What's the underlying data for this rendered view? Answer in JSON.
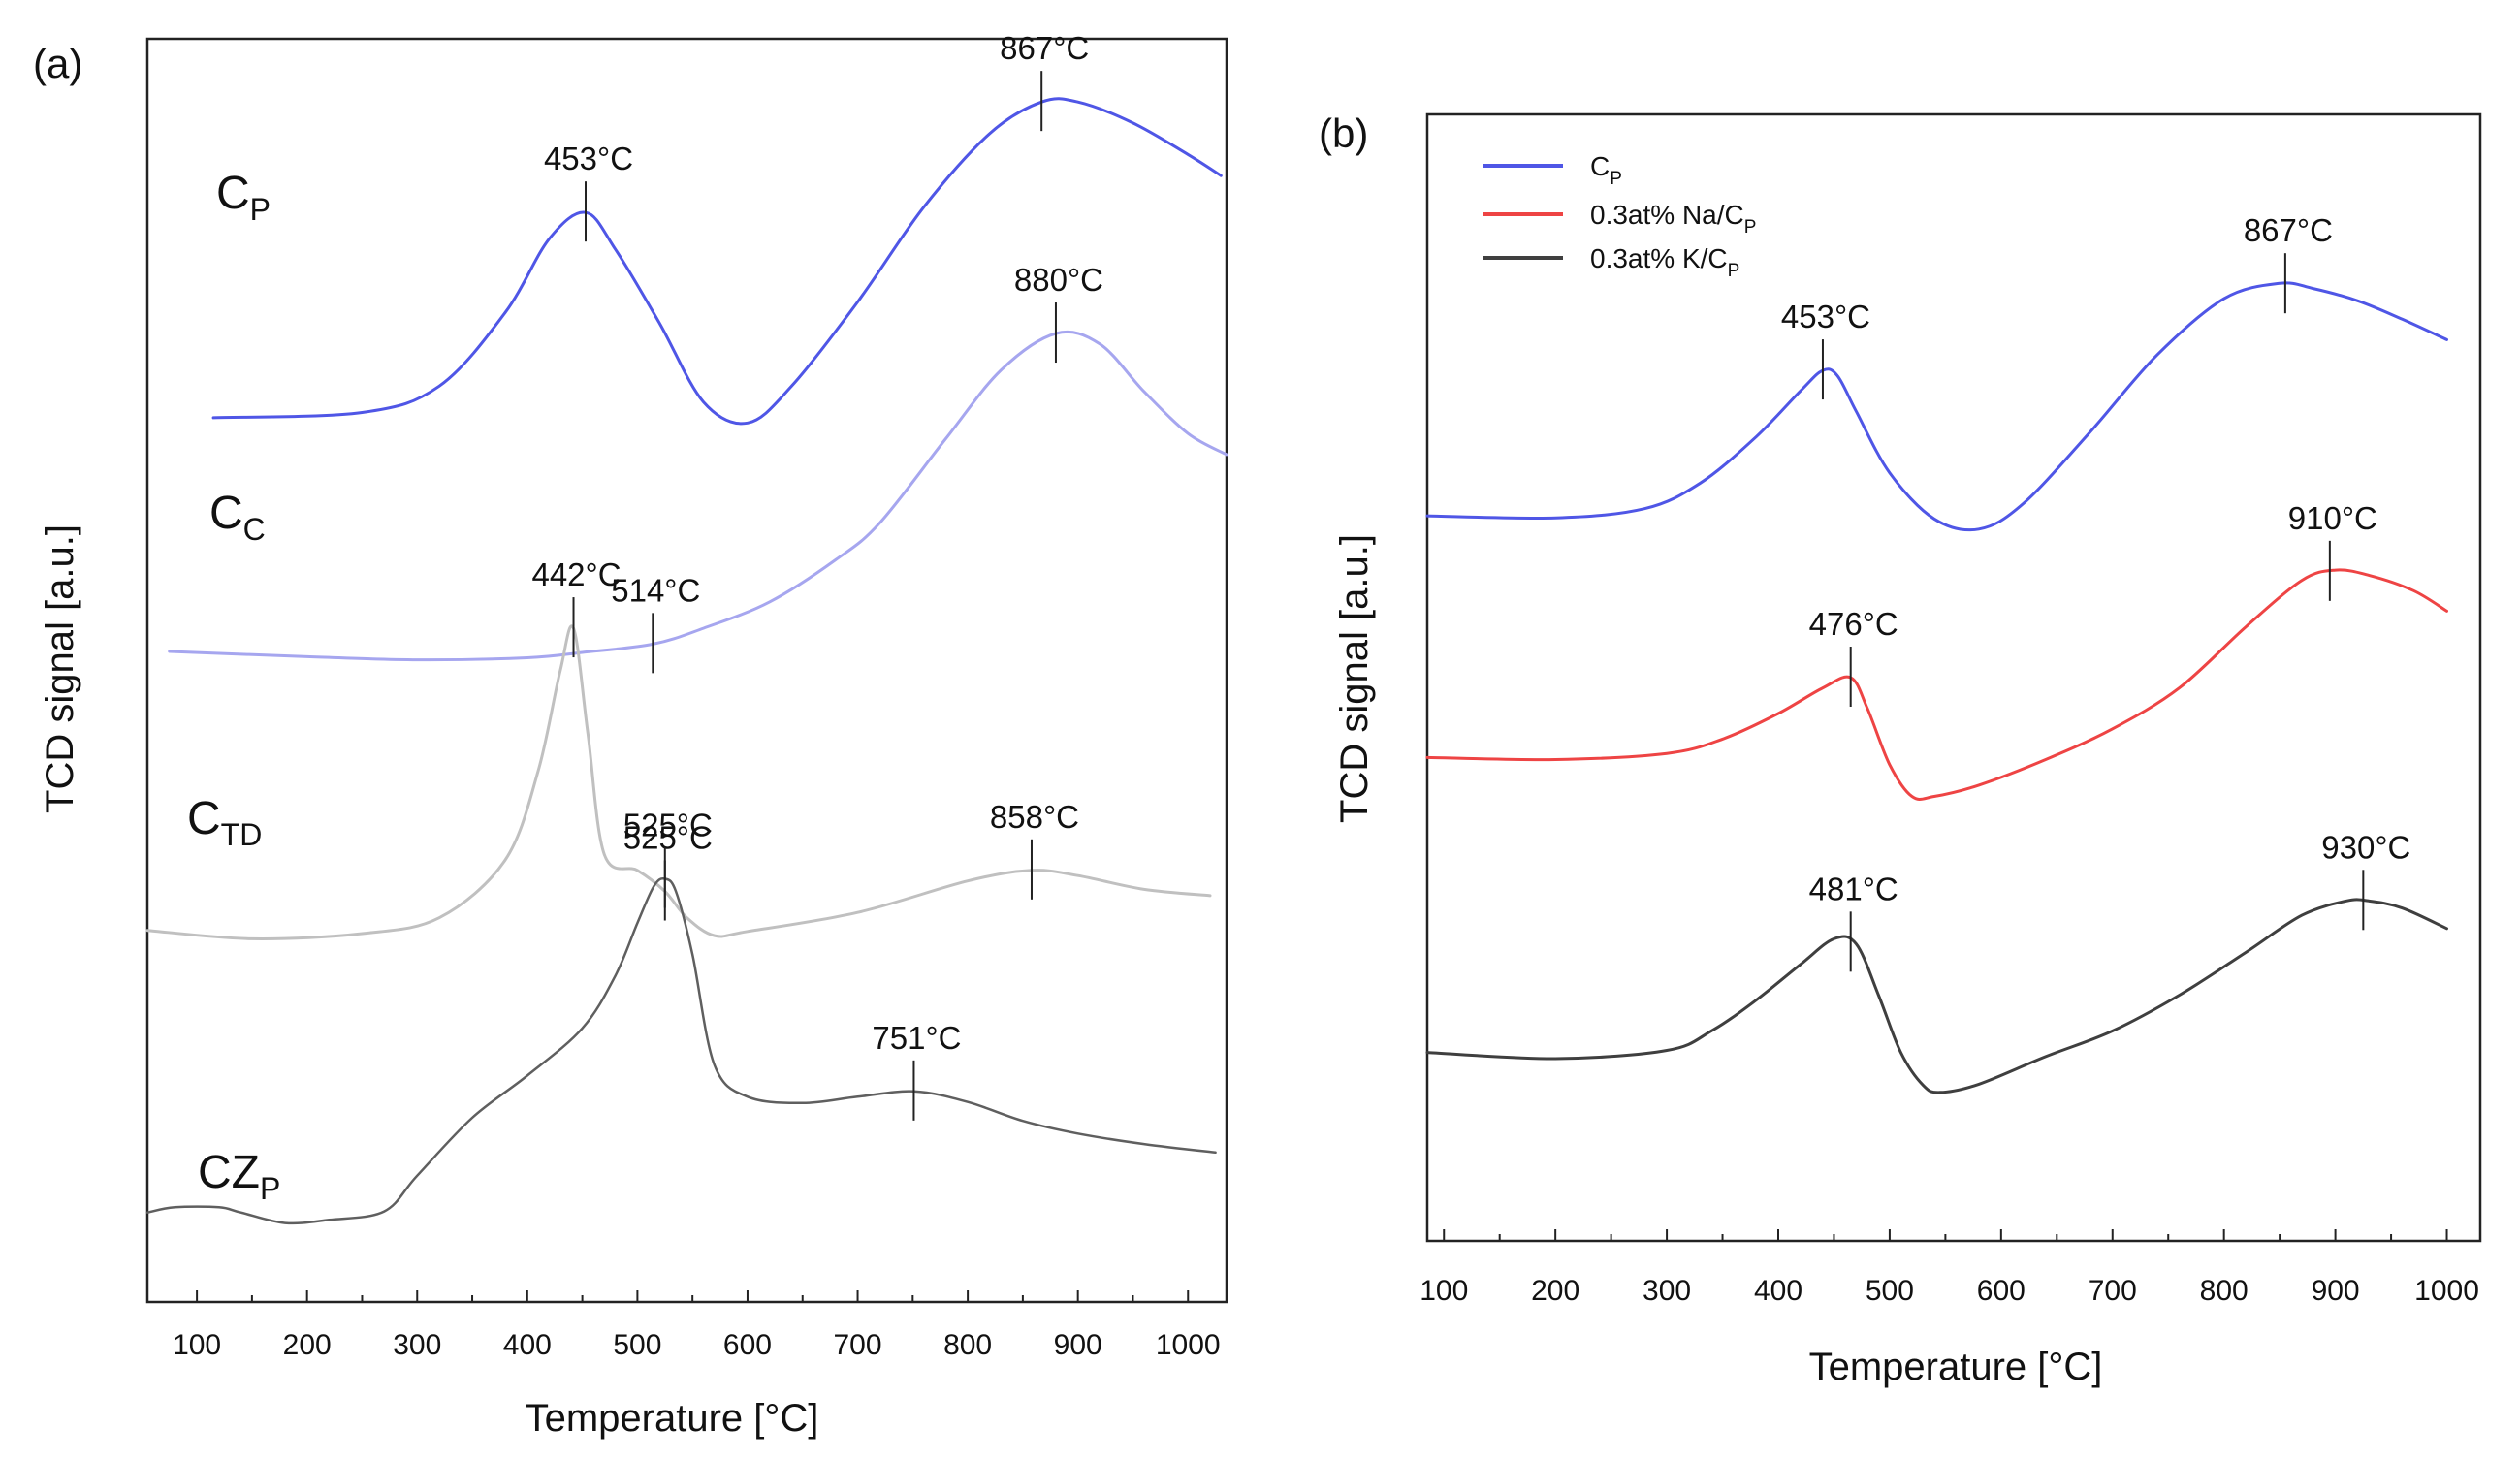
{
  "chart_data": [
    {
      "panel": "(a)",
      "type": "line",
      "xlabel": "Temperature [°C]",
      "ylabel": "TCD signal [a.u.]",
      "xlim": [
        55,
        1035
      ],
      "xticks": [
        100,
        200,
        300,
        400,
        500,
        600,
        700,
        800,
        900,
        1000
      ],
      "y_units": "arbitrary (offset traces)",
      "series": [
        {
          "name": "C_P",
          "label_main": "C",
          "label_sub": "P",
          "color": "#4f56e6",
          "width": 3,
          "x": [
            115,
            250,
            320,
            380,
            420,
            453,
            480,
            520,
            560,
            600,
            640,
            700,
            760,
            820,
            867,
            900,
            950,
            1000,
            1030
          ],
          "y": [
            84,
            84.5,
            87,
            94,
            101,
            103.5,
            100,
            93,
            85.5,
            83.5,
            87,
            95,
            104,
            111,
            114,
            114,
            112,
            109,
            107
          ]
        },
        {
          "name": "C_C",
          "label_main": "C",
          "label_sub": "C",
          "color": "#a6a6ef",
          "width": 3,
          "x": [
            75,
            200,
            300,
            400,
            450,
            514,
            560,
            620,
            680,
            720,
            780,
            830,
            880,
            920,
            960,
            1000,
            1035
          ],
          "y": [
            61.8,
            61.3,
            61,
            61.2,
            61.7,
            62.5,
            64,
            66.5,
            70.5,
            74,
            82,
            88.5,
            92,
            91,
            86.5,
            82.5,
            80.5
          ]
        },
        {
          "name": "C_TD",
          "label_main": "C",
          "label_sub": "TD",
          "color": "#c0c0c0",
          "width": 3,
          "x": [
            55,
            150,
            250,
            320,
            380,
            410,
            430,
            442,
            455,
            470,
            500,
            525,
            545,
            570,
            600,
            700,
            800,
            858,
            900,
            960,
            1020
          ],
          "y": [
            35.3,
            34.5,
            35,
            36.5,
            42,
            50.5,
            60,
            64,
            54,
            42.5,
            41,
            39,
            36.5,
            34.8,
            35.2,
            37,
            40,
            41,
            40.5,
            39.2,
            38.6
          ]
        },
        {
          "name": "CZ_P",
          "label_main": "CZ",
          "label_sub": "P",
          "color": "#5f5f5f",
          "width": 2.5,
          "x": [
            55,
            80,
            120,
            140,
            180,
            220,
            270,
            300,
            350,
            400,
            450,
            480,
            500,
            515,
            525,
            535,
            550,
            570,
            600,
            650,
            700,
            751,
            800,
            850,
            900,
            960,
            1025
          ],
          "y": [
            8.5,
            9,
            9,
            8.5,
            7.5,
            7.8,
            8.6,
            12,
            17.5,
            21.5,
            26,
            31,
            36,
            39.5,
            40.2,
            39,
            33,
            22.5,
            19.5,
            18.9,
            19.5,
            20,
            19,
            17.2,
            16,
            15,
            14.2
          ]
        }
      ],
      "annotations": [
        {
          "text": "453°C",
          "x": 453,
          "series": "C_P"
        },
        {
          "text": "867°C",
          "x": 867,
          "series": "C_P"
        },
        {
          "text": "880°C",
          "x": 880,
          "series": "C_C"
        },
        {
          "text": "514°C",
          "x": 514,
          "series": "C_C"
        },
        {
          "text": "442°C",
          "x": 442,
          "series": "C_TD"
        },
        {
          "text": "525°C",
          "x": 525,
          "series": "C_TD"
        },
        {
          "text": "858°C",
          "x": 858,
          "series": "C_TD"
        },
        {
          "text": "525°C",
          "x": 525,
          "series": "CZ_P"
        },
        {
          "text": "751°C",
          "x": 751,
          "series": "CZ_P"
        }
      ]
    },
    {
      "panel": "(b)",
      "type": "line",
      "xlabel": "Temperature [°C]",
      "ylabel": "TCD signal [a.u.]",
      "xlim": [
        85,
        1030
      ],
      "xticks": [
        100,
        200,
        300,
        400,
        500,
        600,
        700,
        800,
        900,
        1000
      ],
      "y_units": "arbitrary (offset traces)",
      "legend": {
        "location": "top-left",
        "entries": [
          {
            "series": "C_P",
            "prefix": "C",
            "sub": "P"
          },
          {
            "series": "Na",
            "prefix": "0.3at% Na/C",
            "sub": "P"
          },
          {
            "series": "K",
            "prefix": "0.3at% K/C",
            "sub": "P"
          }
        ]
      },
      "series": [
        {
          "name": "C_P",
          "color": "#4f56e6",
          "width": 3,
          "x": [
            85,
            200,
            280,
            330,
            380,
            420,
            440,
            453,
            470,
            500,
            540,
            580,
            620,
            680,
            740,
            800,
            850,
            880,
            920,
            960,
            1000
          ],
          "y": [
            70.8,
            70.6,
            71.5,
            74,
            78.5,
            83,
            85,
            84.5,
            81,
            75,
            70.5,
            69.5,
            72,
            79,
            86.5,
            92,
            93.5,
            93,
            91.8,
            90,
            88
          ]
        },
        {
          "name": "Na",
          "color": "#ee4444",
          "width": 3,
          "x": [
            85,
            200,
            300,
            350,
            400,
            440,
            465,
            480,
            500,
            520,
            540,
            580,
            640,
            700,
            760,
            820,
            870,
            900,
            930,
            970,
            1000
          ],
          "y": [
            47.2,
            47,
            47.6,
            49,
            51.5,
            54,
            55,
            52,
            46.5,
            43.4,
            43.4,
            44.5,
            47,
            50,
            54,
            60,
            64.5,
            65.5,
            65,
            63.5,
            61.5
          ]
        },
        {
          "name": "K",
          "color": "#3f3f3f",
          "width": 3,
          "x": [
            85,
            200,
            300,
            340,
            380,
            420,
            450,
            470,
            490,
            510,
            530,
            545,
            580,
            640,
            700,
            760,
            820,
            870,
            910,
            930,
            960,
            1000
          ],
          "y": [
            18.4,
            17.8,
            18.6,
            20.5,
            23.5,
            27,
            29.5,
            29,
            24,
            18.4,
            15.2,
            14.5,
            15.3,
            18,
            20.5,
            24,
            28.2,
            31.8,
            33.2,
            33.2,
            32.5,
            30.5
          ]
        }
      ],
      "annotations": [
        {
          "text": "453°C",
          "x": 440,
          "series": "C_P"
        },
        {
          "text": "867°C",
          "x": 855,
          "series": "C_P"
        },
        {
          "text": "476°C",
          "x": 465,
          "series": "Na"
        },
        {
          "text": "910°C",
          "x": 895,
          "series": "Na"
        },
        {
          "text": "481°C",
          "x": 465,
          "series": "K"
        },
        {
          "text": "930°C",
          "x": 925,
          "series": "K"
        }
      ]
    }
  ]
}
